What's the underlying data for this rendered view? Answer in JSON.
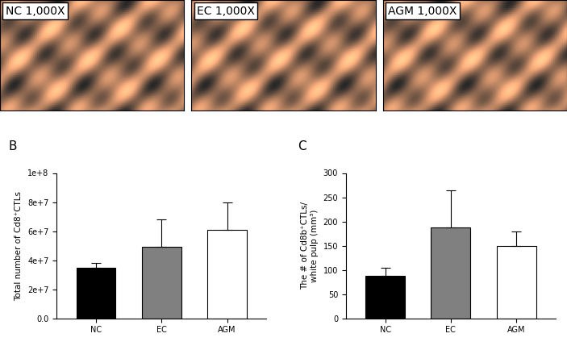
{
  "images": [
    {
      "label": "NC 1,000X"
    },
    {
      "label": "EC 1,000X"
    },
    {
      "label": "AGM 1,000X"
    }
  ],
  "chart_data": [
    {
      "type": "bar",
      "panel": "B",
      "y_label": "Total number of Cd8⁺CTLs",
      "categories": [
        "NC",
        "EC",
        "AGM"
      ],
      "values": [
        35000000,
        49000000,
        61000000
      ],
      "errors": [
        3000000,
        19000000,
        19000000
      ],
      "colors": [
        "#000000",
        "#808080",
        "#ffffff"
      ],
      "ylim": [
        0,
        100000000
      ],
      "yticks": [
        {
          "value": 0,
          "label": "0.0"
        },
        {
          "value": 20000000,
          "label": "2e+7"
        },
        {
          "value": 40000000,
          "label": "4e+7"
        },
        {
          "value": 60000000,
          "label": "6e+7"
        },
        {
          "value": 80000000,
          "label": "8e+7"
        },
        {
          "value": 100000000,
          "label": "1e+8"
        }
      ],
      "grid": false
    },
    {
      "type": "bar",
      "panel": "C",
      "y_label": "The # of Cd8b⁺CTLs/\nwhite pulp (mm³)",
      "categories": [
        "NC",
        "EC",
        "AGM"
      ],
      "values": [
        88,
        188,
        150
      ],
      "errors": [
        17,
        77,
        29
      ],
      "colors": [
        "#000000",
        "#808080",
        "#ffffff"
      ],
      "ylim": [
        0,
        300
      ],
      "yticks": [
        0,
        50,
        100,
        150,
        200,
        250,
        300
      ],
      "grid": false
    }
  ]
}
